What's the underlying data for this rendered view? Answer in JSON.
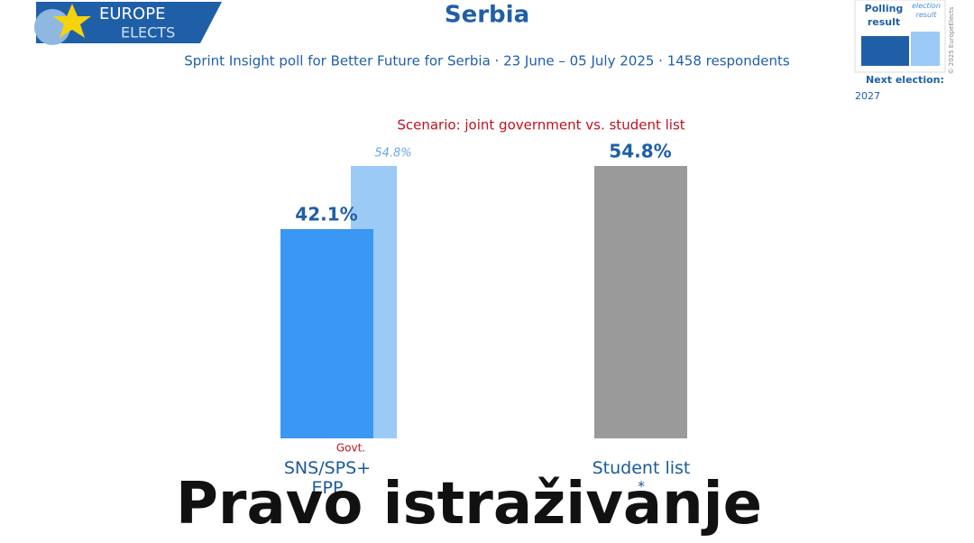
{
  "logo": {
    "line1": "EUROPE",
    "line2": "ELECTS"
  },
  "legend_box": {
    "polling_label": "Polling result",
    "election_label": "election result",
    "next_election_label": "Next election:",
    "next_election_year": "2027",
    "copyright": "© 2025 EuropeElects"
  },
  "chart_data": {
    "type": "bar",
    "title": "Serbia",
    "subtitle": "Sprint Insight poll for Better Future for Serbia · 23 June – 05 July 2025 · 1458 respondents",
    "scenario": "Scenario: joint government vs. student list",
    "categories": [
      "SNS/SPS+ EPP",
      "Student list"
    ],
    "category_notes": [
      "Govt.",
      "*"
    ],
    "series": [
      {
        "name": "Polling result",
        "colors": [
          "#3a97f3",
          "#9a9a9a"
        ],
        "values": [
          42.1,
          54.8
        ],
        "value_labels": [
          "42.1%",
          "54.8%"
        ]
      },
      {
        "name": "election result",
        "color": "#9ccaf7",
        "values": [
          54.8,
          null
        ],
        "value_labels": [
          "54.8%",
          null
        ]
      }
    ]
  },
  "caption": "Pravo istraživanje"
}
